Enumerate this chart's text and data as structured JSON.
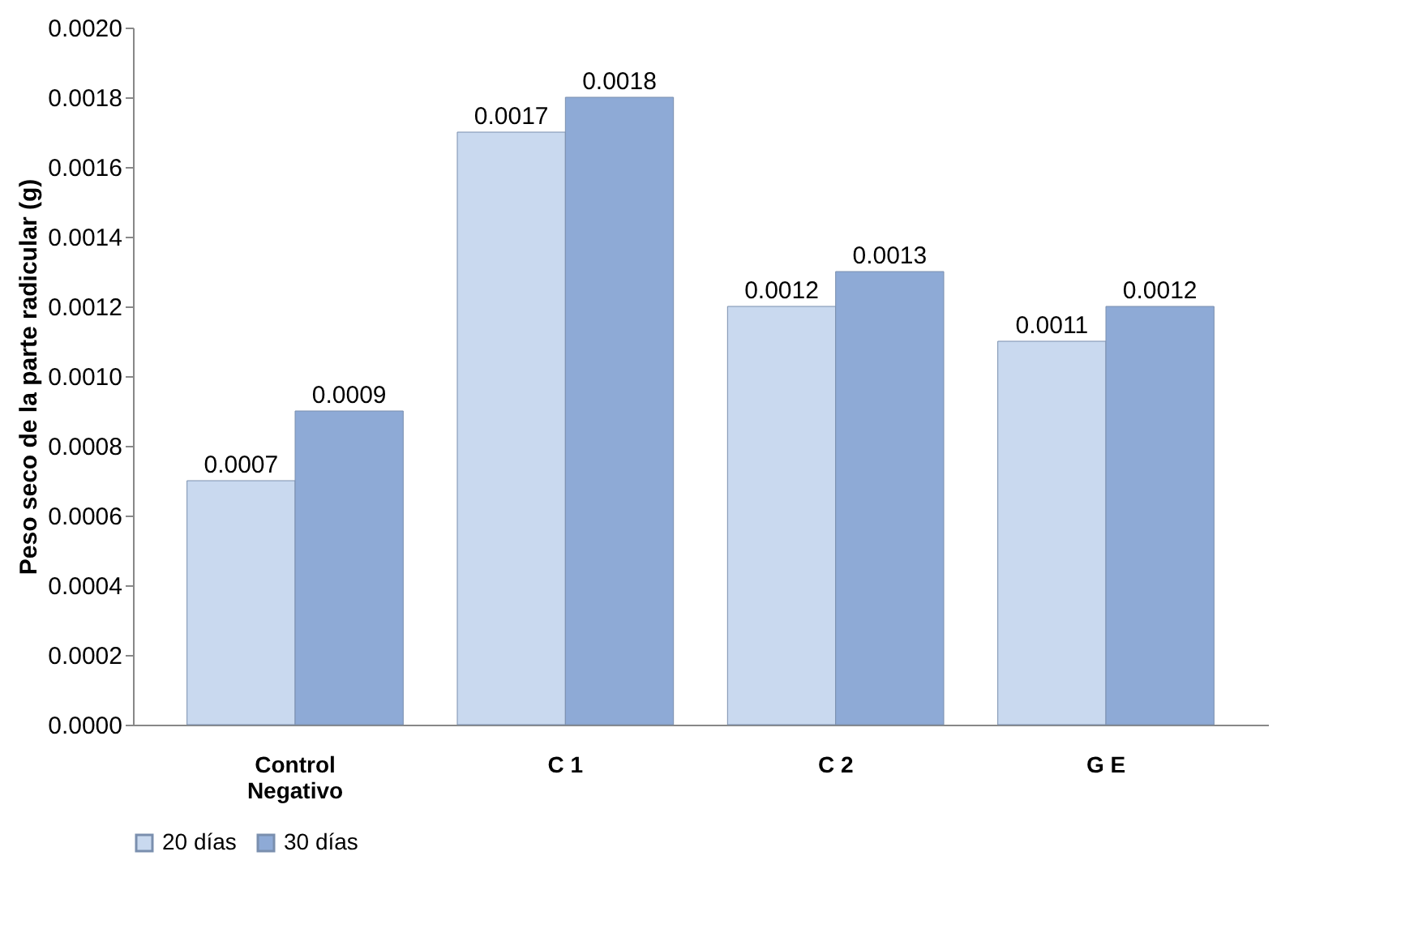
{
  "chart_data": {
    "type": "bar",
    "ylabel": "Peso seco de la parte radicular (g)",
    "categories": [
      "Control Negativo",
      "C 1",
      "C 2",
      "G E"
    ],
    "series": [
      {
        "name": "20 días",
        "color": "#c9d9ef",
        "values": [
          0.0007,
          0.0017,
          0.0012,
          0.0011
        ]
      },
      {
        "name": "30 días",
        "color": "#8eaad6",
        "values": [
          0.0009,
          0.0018,
          0.0013,
          0.0012
        ]
      }
    ],
    "ylim": [
      0,
      0.002
    ],
    "yticks": [
      {
        "value": 0,
        "label": "0.0000"
      },
      0.0002,
      0.0004,
      0.0006,
      0.0008,
      {
        "value": 0.001,
        "label": "0.0010"
      },
      0.0012,
      0.0014,
      0.0016,
      0.0018,
      {
        "value": 0.002,
        "label": "0.0020"
      }
    ],
    "data_labels": true,
    "grid": false,
    "legend": "bottom"
  }
}
